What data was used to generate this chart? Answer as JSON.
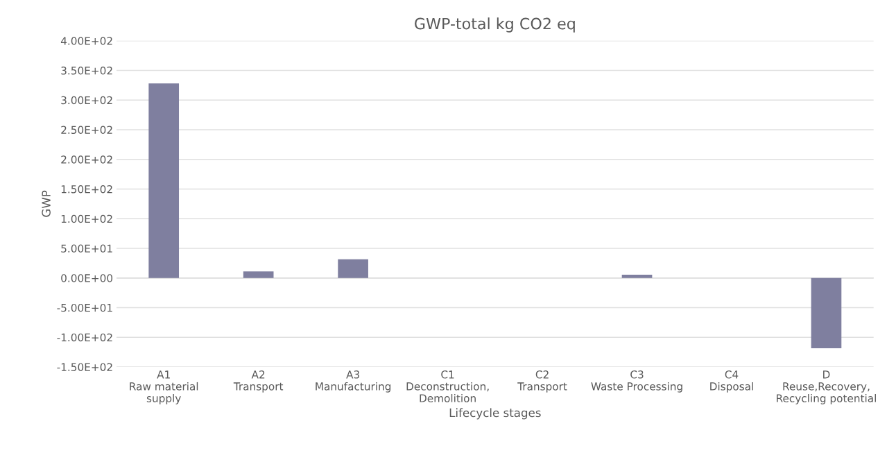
{
  "chart_data": {
    "type": "bar",
    "title": "GWP-total kg CO2 eq",
    "xlabel": "Lifecycle stages",
    "ylabel": "GWP",
    "categories": [
      "A1\nRaw material\nsupply",
      "A2\nTransport",
      "A3\nManufacturing",
      "C1\nDeconstruction,\nDemolition",
      "C2\nTransport",
      "C3\nWaste Processing",
      "C4\nDisposal",
      "D\nReuse,Recovery,\nRecycling potential"
    ],
    "values": [
      328,
      11,
      31.5,
      0,
      0,
      5.4,
      0,
      -118.5
    ],
    "color": "#7f7f9f",
    "ylim": [
      -150,
      400
    ],
    "yticks": [
      {
        "value": -150,
        "label": "-1.50E+02"
      },
      {
        "value": -100,
        "label": "-1.00E+02"
      },
      {
        "value": -50,
        "label": "-5.00E+01"
      },
      {
        "value": 0,
        "label": "0.00E+00"
      },
      {
        "value": 50,
        "label": "5.00E+01"
      },
      {
        "value": 100,
        "label": "1.00E+02"
      },
      {
        "value": 150,
        "label": "1.50E+02"
      },
      {
        "value": 200,
        "label": "2.00E+02"
      },
      {
        "value": 250,
        "label": "2.50E+02"
      },
      {
        "value": 300,
        "label": "3.00E+02"
      },
      {
        "value": 350,
        "label": "3.50E+02"
      },
      {
        "value": 400,
        "label": "4.00E+02"
      }
    ],
    "grid": "y"
  }
}
